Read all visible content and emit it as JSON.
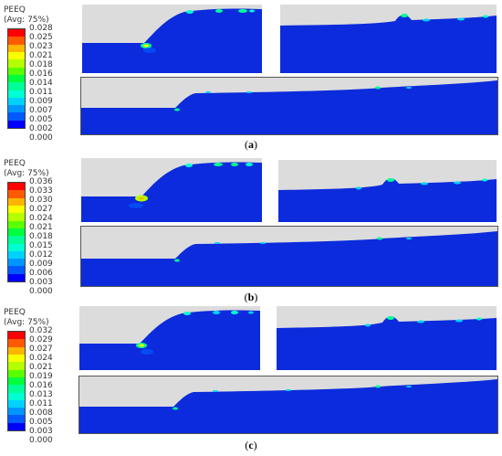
{
  "colors": {
    "fill_blue": "#0b2bdc",
    "deep_blue": "#0418b0",
    "air_gray": "#dcdcdc",
    "panel_border": "#555555",
    "contour_scale": [
      "#ff0000",
      "#ff5a00",
      "#ffb400",
      "#f7ff00",
      "#b4ff00",
      "#5aff00",
      "#00ff3c",
      "#00ff96",
      "#00ffd2",
      "#00d2ff",
      "#0096ff",
      "#005aff",
      "#0000ff"
    ]
  },
  "figures": [
    {
      "id": "a",
      "legend": {
        "title_line1": "PEEQ",
        "title_line2": "(Avg: 75%)",
        "ticks": [
          "0.028",
          "0.025",
          "0.023",
          "0.021",
          "0.018",
          "0.016",
          "0.014",
          "0.011",
          "0.009",
          "0.007",
          "0.005",
          "0.002",
          "0.000"
        ]
      },
      "caption": {
        "open": "(",
        "label": "a",
        "close": ")"
      }
    },
    {
      "id": "b",
      "legend": {
        "title_line1": "PEEQ",
        "title_line2": "(Avg: 75%)",
        "ticks": [
          "0.036",
          "0.033",
          "0.030",
          "0.027",
          "0.024",
          "0.021",
          "0.018",
          "0.015",
          "0.012",
          "0.009",
          "0.006",
          "0.003",
          "0.000"
        ]
      },
      "caption": {
        "open": "(",
        "label": "b",
        "close": ")"
      }
    },
    {
      "id": "c",
      "legend": {
        "title_line1": "PEEQ",
        "title_line2": "(Avg: 75%)",
        "ticks": [
          "0.032",
          "0.029",
          "0.027",
          "0.024",
          "0.021",
          "0.019",
          "0.016",
          "0.013",
          "0.011",
          "0.008",
          "0.005",
          "0.003",
          "0.000"
        ]
      },
      "caption": {
        "open": "(",
        "label": "c",
        "close": ")"
      }
    }
  ]
}
